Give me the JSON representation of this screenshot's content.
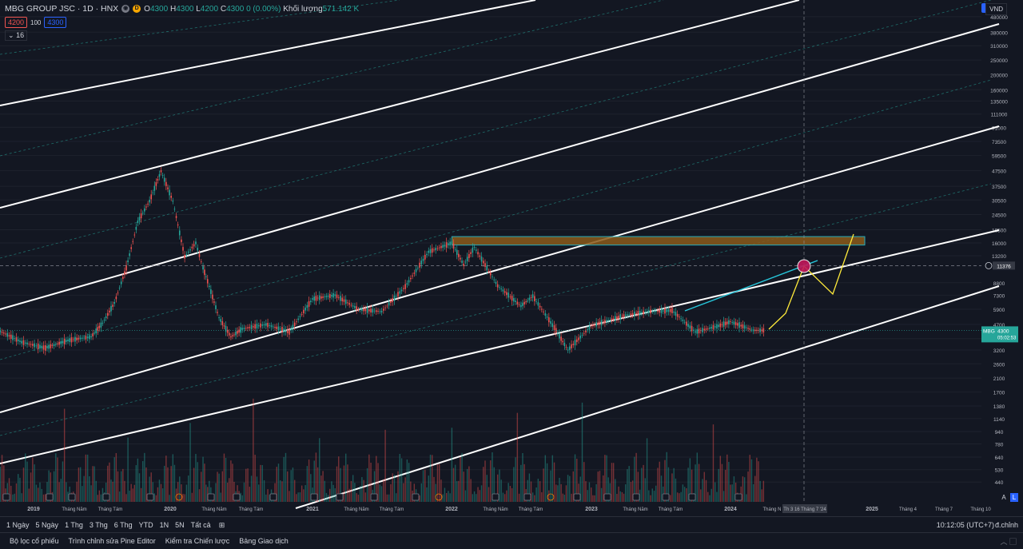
{
  "header": {
    "symbol": "MBG GROUP JSC · 1D · HNX",
    "open_label": "O",
    "open": "4300",
    "high_label": "H",
    "high": "4300",
    "low_label": "L",
    "low": "4200",
    "close_label": "C",
    "close": "4300",
    "change": "0 (0.00%)",
    "volume_label": "Khối lượng",
    "volume": "571.142 K",
    "bid": "4200",
    "spread": "100",
    "ask": "4300",
    "indicators_count": "16",
    "currency": "VND",
    "colors": {
      "up": "#26a69a",
      "down": "#ef5350",
      "accent": "#2962ff"
    }
  },
  "chart_data": {
    "type": "candlestick",
    "symbol": "MBG",
    "scale": "log",
    "y_ticks": [
      "480000",
      "380000",
      "310000",
      "250000",
      "200000",
      "160000",
      "135000",
      "111000",
      "91000",
      "73500",
      "59500",
      "47500",
      "37500",
      "30500",
      "24500",
      "19500",
      "16000",
      "13200",
      "11376",
      "8800",
      "7300",
      "5900",
      "4700",
      "3800",
      "3200",
      "2600",
      "2100",
      "1700",
      "1380",
      "1140",
      "940",
      "780",
      "640",
      "530",
      "440"
    ],
    "x_ticks": [
      "2019",
      "Tháng Năm",
      "Tháng Tám",
      "2020",
      "Tháng Năm",
      "Tháng Tám",
      "2021",
      "Tháng Năm",
      "Tháng Tám",
      "2022",
      "Tháng Năm",
      "Tháng Tám",
      "2023",
      "Tháng Năm",
      "Tháng Tám",
      "2024",
      "Tháng N",
      "Th 3 16 Tháng 7 '24",
      "2025",
      "Tháng 4",
      "Tháng 7",
      "Tháng 10"
    ],
    "current_price": {
      "label": "MBG",
      "value": "4300",
      "countdown": "05:02:53"
    },
    "crosshair_price": "11376",
    "crosshair_date": "Th 3 16 Tháng 7 '24",
    "price_path": [
      [
        "2018-10",
        4300
      ],
      [
        "2018-12",
        3600
      ],
      [
        "2019-02",
        3300
      ],
      [
        "2019-04",
        3700
      ],
      [
        "2019-06",
        3900
      ],
      [
        "2019-07",
        4800
      ],
      [
        "2019-08",
        6500
      ],
      [
        "2019-09",
        11000
      ],
      [
        "2019-10",
        22000
      ],
      [
        "2019-11",
        30000
      ],
      [
        "2019-12",
        47000
      ],
      [
        "2020-01",
        30000
      ],
      [
        "2020-02",
        13000
      ],
      [
        "2020-03",
        16000
      ],
      [
        "2020-03-20",
        11000
      ],
      [
        "2020-04",
        9000
      ],
      [
        "2020-05",
        5200
      ],
      [
        "2020-06",
        3900
      ],
      [
        "2020-07",
        4400
      ],
      [
        "2020-09",
        4700
      ],
      [
        "2020-11",
        4200
      ],
      [
        "2021-01",
        6900
      ],
      [
        "2021-03",
        7300
      ],
      [
        "2021-05",
        5900
      ],
      [
        "2021-07",
        5700
      ],
      [
        "2021-09",
        8300
      ],
      [
        "2021-11",
        14000
      ],
      [
        "2022-01",
        16000
      ],
      [
        "2022-02",
        11500
      ],
      [
        "2022-03",
        15000
      ],
      [
        "2022-05",
        8400
      ],
      [
        "2022-07",
        6200
      ],
      [
        "2022-08",
        7200
      ],
      [
        "2022-10",
        4300
      ],
      [
        "2022-11",
        3200
      ],
      [
        "2023-01",
        4600
      ],
      [
        "2023-04",
        5400
      ],
      [
        "2023-06",
        5700
      ],
      [
        "2023-08",
        5800
      ],
      [
        "2023-10",
        4200
      ],
      [
        "2023-12",
        4600
      ],
      [
        "2024-01",
        4900
      ],
      [
        "2024-03",
        4300
      ],
      [
        "2024-04",
        4300
      ]
    ],
    "zone": {
      "from": "2022-01",
      "to": "2025-01",
      "low": 15500,
      "high": 17600
    }
  },
  "toolbar": {
    "timeframes": [
      "1 Ngày",
      "5 Ngày",
      "1 Thg",
      "3 Thg",
      "6 Thg",
      "YTD",
      "1N",
      "5N",
      "Tất cả"
    ],
    "clock": "10:12:05 (UTC+7)",
    "adjust": "đ.chỉnh",
    "scale_a": "A",
    "scale_l": "L"
  },
  "bottom_tabs": [
    "Bộ lọc cổ phiếu",
    "Trình chỉnh sửa Pine Editor",
    "Kiểm tra Chiến lược",
    "Bảng Giao dịch"
  ],
  "bottom_controls": "︿ ▢"
}
